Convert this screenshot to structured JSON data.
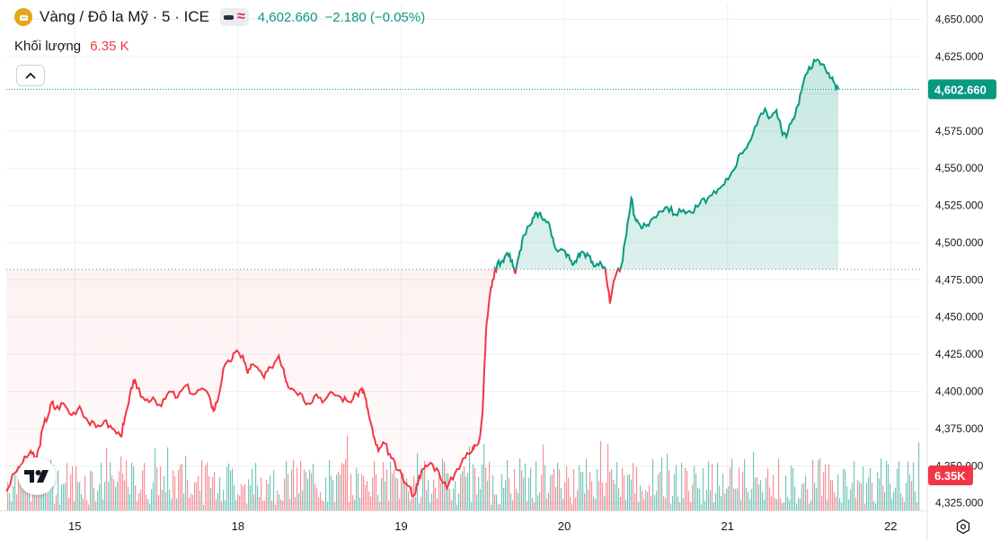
{
  "header": {
    "symbol_title": "Vàng / Đô la Mỹ · 5 · ICE",
    "last_price": "4,602.660",
    "change": "−2.180 (−0.05%)",
    "volume_label": "Khối lượng",
    "volume_value": "6.35 K"
  },
  "colors": {
    "up": "#089981",
    "down": "#f23645",
    "up_fill": "#e3f4ef",
    "down_fill": "#fde4e6",
    "grid": "#eef0f3",
    "axis_text": "#131722"
  },
  "icons": [
    "gold-coin-icon",
    "collapse-chevron-icon",
    "tradingview-logo-icon",
    "settings-icon"
  ],
  "chart_data": {
    "type": "area",
    "baseline": 4482,
    "ylim": [
      4320,
      4660
    ],
    "yticks": [
      "4,650.000",
      "4,625.000",
      "4,600.000",
      "4,575.000",
      "4,550.000",
      "4,525.000",
      "4,500.000",
      "4,475.000",
      "4,450.000",
      "4,425.000",
      "4,400.000",
      "4,375.000",
      "4,350.000",
      "4,325.000"
    ],
    "xticks": [
      {
        "label": "15",
        "x": 0.72
      },
      {
        "label": "18",
        "x": 1.72
      },
      {
        "label": "19",
        "x": 2.72
      },
      {
        "label": "20",
        "x": 3.72
      },
      {
        "label": "21",
        "x": 4.72
      },
      {
        "label": "22",
        "x": 5.72
      }
    ],
    "x_range": [
      0.3,
      5.9
    ],
    "price_tag": "4,602.660",
    "volume_tag": "6.35K",
    "series": [
      {
        "values": [
          [
            0.3,
            4333
          ],
          [
            0.35,
            4345
          ],
          [
            0.4,
            4352
          ],
          [
            0.45,
            4360
          ],
          [
            0.48,
            4353
          ],
          [
            0.5,
            4362
          ],
          [
            0.53,
            4378
          ],
          [
            0.56,
            4385
          ],
          [
            0.58,
            4393
          ],
          [
            0.6,
            4388
          ],
          [
            0.65,
            4392
          ],
          [
            0.7,
            4384
          ],
          [
            0.75,
            4390
          ],
          [
            0.8,
            4380
          ],
          [
            0.85,
            4376
          ],
          [
            0.9,
            4380
          ],
          [
            0.95,
            4375
          ],
          [
            1.0,
            4370
          ],
          [
            1.02,
            4378
          ],
          [
            1.05,
            4392
          ],
          [
            1.08,
            4408
          ],
          [
            1.1,
            4402
          ],
          [
            1.15,
            4394
          ],
          [
            1.2,
            4396
          ],
          [
            1.25,
            4390
          ],
          [
            1.3,
            4400
          ],
          [
            1.35,
            4396
          ],
          [
            1.4,
            4404
          ],
          [
            1.45,
            4398
          ],
          [
            1.5,
            4402
          ],
          [
            1.55,
            4395
          ],
          [
            1.57,
            4387
          ],
          [
            1.6,
            4396
          ],
          [
            1.63,
            4415
          ],
          [
            1.67,
            4420
          ],
          [
            1.7,
            4426
          ],
          [
            1.75,
            4424
          ],
          [
            1.78,
            4412
          ],
          [
            1.8,
            4418
          ],
          [
            1.85,
            4414
          ],
          [
            1.88,
            4409
          ],
          [
            1.92,
            4416
          ],
          [
            1.97,
            4424
          ],
          [
            2.0,
            4415
          ],
          [
            2.02,
            4406
          ],
          [
            2.05,
            4402
          ],
          [
            2.1,
            4399
          ],
          [
            2.15,
            4392
          ],
          [
            2.2,
            4398
          ],
          [
            2.25,
            4394
          ],
          [
            2.3,
            4399
          ],
          [
            2.35,
            4396
          ],
          [
            2.4,
            4393
          ],
          [
            2.45,
            4398
          ],
          [
            2.48,
            4402
          ],
          [
            2.5,
            4396
          ],
          [
            2.52,
            4385
          ],
          [
            2.55,
            4370
          ],
          [
            2.58,
            4360
          ],
          [
            2.62,
            4365
          ],
          [
            2.66,
            4355
          ],
          [
            2.7,
            4347
          ],
          [
            2.75,
            4338
          ],
          [
            2.8,
            4330
          ],
          [
            2.83,
            4343
          ],
          [
            2.86,
            4348
          ],
          [
            2.9,
            4352
          ],
          [
            2.95,
            4346
          ],
          [
            3.0,
            4335
          ],
          [
            3.05,
            4345
          ],
          [
            3.1,
            4355
          ],
          [
            3.15,
            4359
          ],
          [
            3.17,
            4364
          ],
          [
            3.2,
            4368
          ],
          [
            3.22,
            4388
          ],
          [
            3.24,
            4440
          ],
          [
            3.26,
            4462
          ],
          [
            3.28,
            4475
          ],
          [
            3.31,
            4486
          ],
          [
            3.34,
            4488
          ],
          [
            3.37,
            4493
          ],
          [
            3.4,
            4488
          ],
          [
            3.42,
            4479
          ],
          [
            3.44,
            4490
          ],
          [
            3.47,
            4505
          ],
          [
            3.52,
            4513
          ],
          [
            3.55,
            4520
          ],
          [
            3.58,
            4517
          ],
          [
            3.62,
            4514
          ],
          [
            3.65,
            4503
          ],
          [
            3.68,
            4494
          ],
          [
            3.71,
            4495
          ],
          [
            3.74,
            4492
          ],
          [
            3.77,
            4485
          ],
          [
            3.8,
            4490
          ],
          [
            3.83,
            4494
          ],
          [
            3.87,
            4491
          ],
          [
            3.9,
            4484
          ],
          [
            3.94,
            4487
          ],
          [
            3.97,
            4483
          ],
          [
            4.0,
            4459
          ],
          [
            4.03,
            4476
          ],
          [
            4.07,
            4485
          ],
          [
            4.1,
            4505
          ],
          [
            4.13,
            4530
          ],
          [
            4.15,
            4518
          ],
          [
            4.17,
            4514
          ],
          [
            4.2,
            4510
          ],
          [
            4.23,
            4512
          ],
          [
            4.26,
            4516
          ],
          [
            4.3,
            4521
          ],
          [
            4.35,
            4524
          ],
          [
            4.4,
            4519
          ],
          [
            4.45,
            4522
          ],
          [
            4.5,
            4520
          ],
          [
            4.55,
            4526
          ],
          [
            4.6,
            4530
          ],
          [
            4.65,
            4533
          ],
          [
            4.7,
            4539
          ],
          [
            4.75,
            4548
          ],
          [
            4.8,
            4560
          ],
          [
            4.85,
            4567
          ],
          [
            4.9,
            4579
          ],
          [
            4.95,
            4590
          ],
          [
            4.98,
            4584
          ],
          [
            5.02,
            4589
          ],
          [
            5.05,
            4576
          ],
          [
            5.08,
            4571
          ],
          [
            5.12,
            4583
          ],
          [
            5.15,
            4592
          ],
          [
            5.18,
            4605
          ],
          [
            5.22,
            4618
          ],
          [
            5.26,
            4622
          ],
          [
            5.3,
            4620
          ],
          [
            5.34,
            4614
          ],
          [
            5.37,
            4608
          ],
          [
            5.4,
            4603
          ]
        ]
      },
      {
        "name": "Khối lượng",
        "type": "bar"
      }
    ]
  }
}
